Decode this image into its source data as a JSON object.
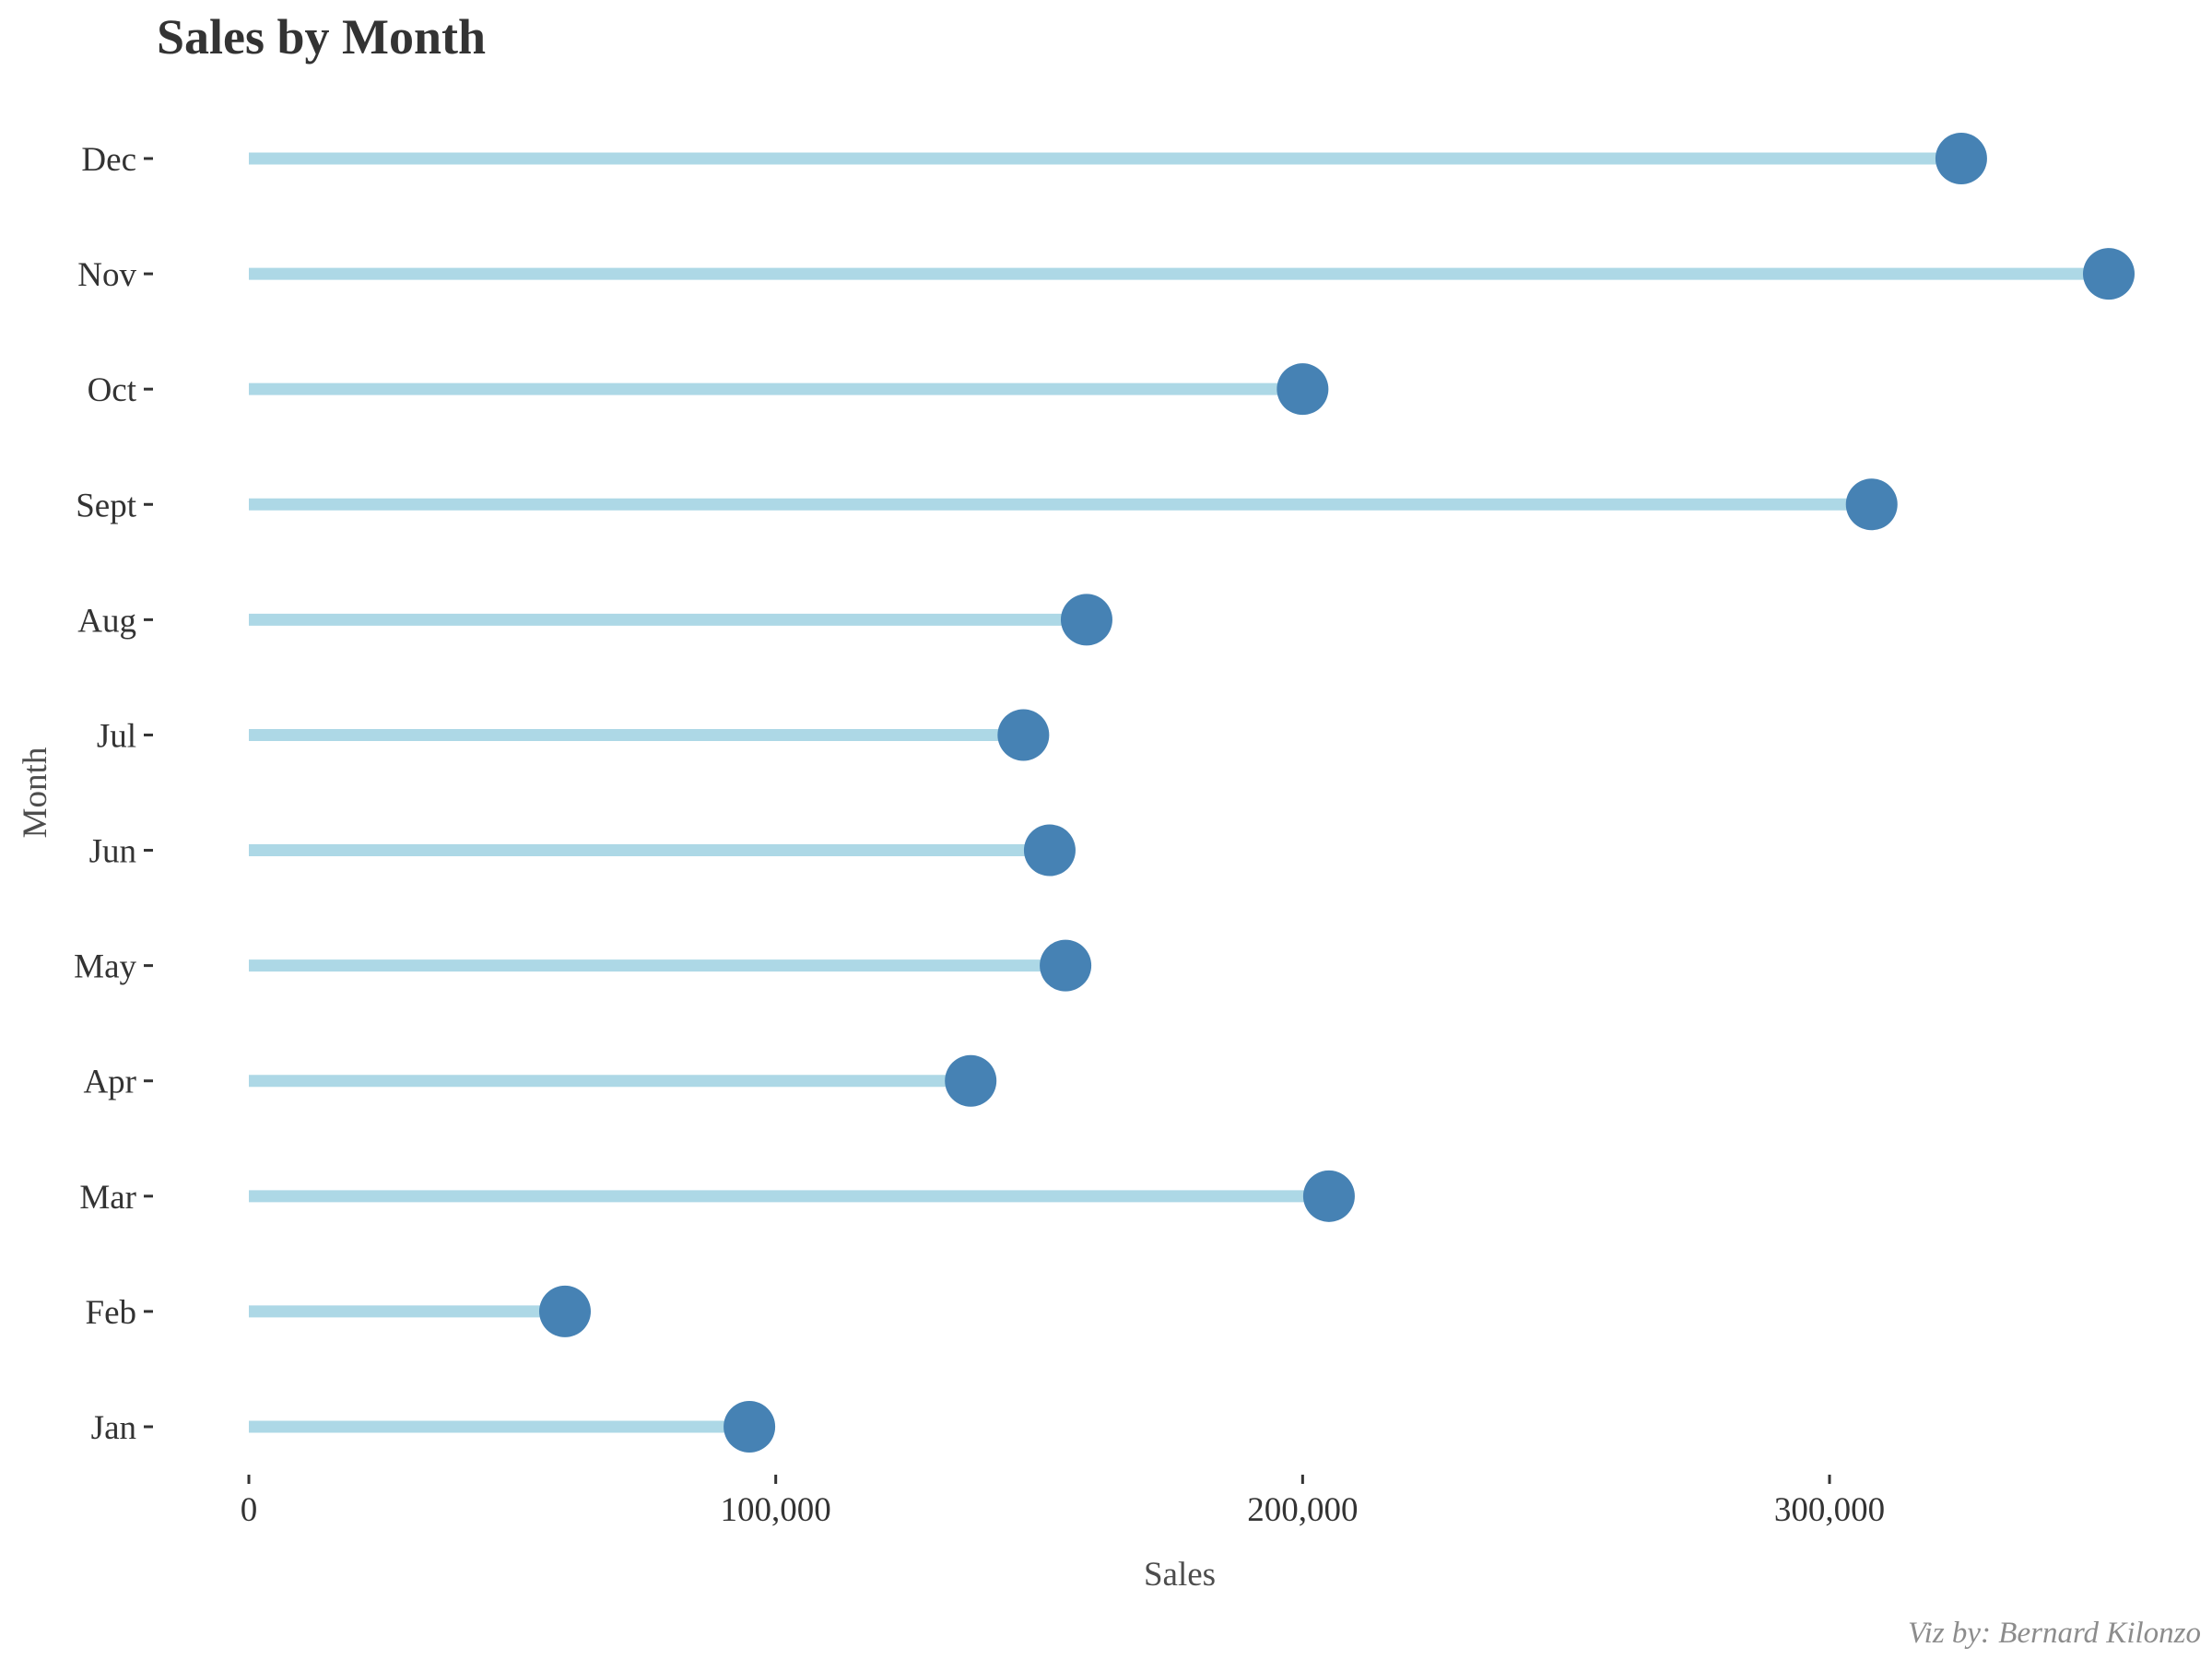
{
  "chart_data": {
    "type": "lollipop",
    "title": "Sales by Month",
    "xlabel": "Sales",
    "ylabel": "Month",
    "caption": "Viz by: Bernard Kilonzo",
    "categories": [
      "Jan",
      "Feb",
      "Mar",
      "Apr",
      "May",
      "Jun",
      "Jul",
      "Aug",
      "Sept",
      "Oct",
      "Nov",
      "Dec"
    ],
    "values": [
      95000,
      60000,
      205000,
      137000,
      155000,
      152000,
      147000,
      159000,
      308000,
      200000,
      353000,
      325000
    ],
    "xlim": [
      0,
      353000
    ],
    "xticks": [
      0,
      100000,
      200000,
      300000
    ],
    "xtick_labels": [
      "0",
      "100,000",
      "200,000",
      "300,000"
    ],
    "grid": false,
    "colors": {
      "stem": "#add8e6",
      "point": "#4682b4",
      "text": "#333333",
      "axis_title": "#4d4d4d",
      "caption": "#8c8c8c"
    }
  }
}
